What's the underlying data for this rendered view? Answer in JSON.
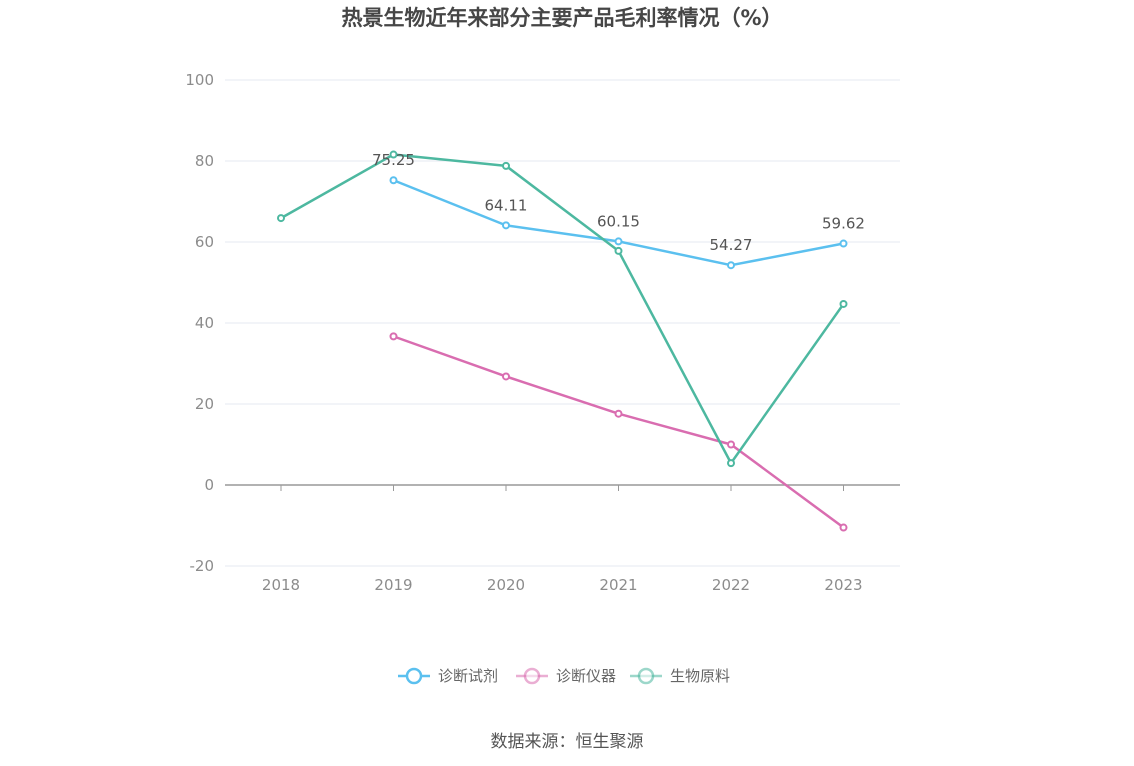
{
  "chart_data": {
    "type": "line",
    "title": "热景生物近年来部分主要产品毛利率情况（%）",
    "categories": [
      "2018",
      "2019",
      "2020",
      "2021",
      "2022",
      "2023"
    ],
    "ylim": [
      -20,
      100
    ],
    "yticks": [
      -20,
      0,
      20,
      40,
      60,
      80,
      100
    ],
    "grid": true,
    "legend_position": "bottom",
    "series": [
      {
        "name": "诊断试剂",
        "color": "#5bc0ef",
        "values": [
          null,
          75.25,
          64.11,
          60.15,
          54.27,
          59.62
        ],
        "labels": [
          "",
          "75.25",
          "64.11",
          "60.15",
          "54.27",
          "59.62"
        ]
      },
      {
        "name": "诊断仪器",
        "color": "#d96db0",
        "values": [
          null,
          36.7,
          26.8,
          17.6,
          10.0,
          -10.5
        ],
        "labels": [
          "",
          "",
          "",
          "",
          "",
          ""
        ]
      },
      {
        "name": "生物原料",
        "color": "#4db8a0",
        "values": [
          65.9,
          81.6,
          78.8,
          57.8,
          5.4,
          44.7
        ],
        "labels": [
          "",
          "",
          "",
          "",
          "",
          ""
        ]
      }
    ],
    "source": "数据来源：恒生聚源"
  }
}
